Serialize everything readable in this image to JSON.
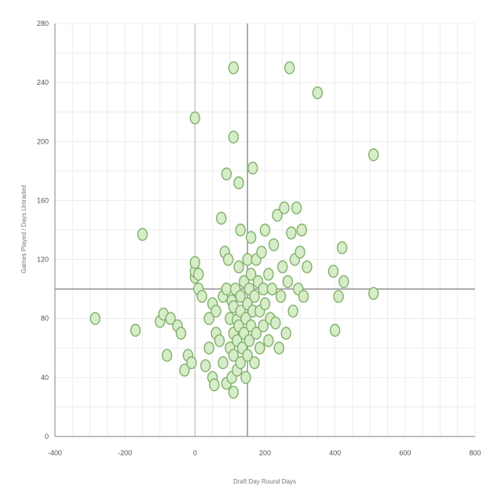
{
  "chart_data": {
    "type": "scatter",
    "title": "",
    "xlabel": "Draft Day Round Days",
    "ylabel": "Games Played / Days Untraded",
    "xlim": [
      -400,
      800
    ],
    "ylim": [
      0,
      280
    ],
    "xticks": [
      "-400",
      "-200",
      "0",
      "200",
      "400",
      "600",
      "800"
    ],
    "yticks": [
      "0",
      "40",
      "80",
      "120",
      "160",
      "200",
      "240",
      "280"
    ],
    "grid": true,
    "reference_lines": {
      "x": 150,
      "y": 100
    },
    "colors": {
      "marker_fill": "#d7ecc9",
      "marker_stroke": "#7fb069",
      "reference": "#9a9a9a"
    },
    "series": [
      {
        "points": [
          [
            -285,
            80
          ],
          [
            -170,
            72
          ],
          [
            -150,
            137
          ],
          [
            -100,
            78
          ],
          [
            -90,
            83
          ],
          [
            -80,
            55
          ],
          [
            -70,
            80
          ],
          [
            -50,
            75
          ],
          [
            -40,
            70
          ],
          [
            -30,
            45
          ],
          [
            -20,
            55
          ],
          [
            -10,
            50
          ],
          [
            0,
            108
          ],
          [
            0,
            112
          ],
          [
            0,
            118
          ],
          [
            0,
            216
          ],
          [
            10,
            100
          ],
          [
            10,
            110
          ],
          [
            20,
            95
          ],
          [
            30,
            48
          ],
          [
            40,
            60
          ],
          [
            40,
            80
          ],
          [
            50,
            40
          ],
          [
            50,
            90
          ],
          [
            55,
            35
          ],
          [
            60,
            70
          ],
          [
            60,
            85
          ],
          [
            70,
            65
          ],
          [
            75,
            148
          ],
          [
            80,
            50
          ],
          [
            80,
            95
          ],
          [
            85,
            125
          ],
          [
            90,
            36
          ],
          [
            90,
            100
          ],
          [
            90,
            178
          ],
          [
            95,
            120
          ],
          [
            100,
            60
          ],
          [
            100,
            80
          ],
          [
            105,
            40
          ],
          [
            105,
            92
          ],
          [
            110,
            30
          ],
          [
            110,
            55
          ],
          [
            110,
            70
          ],
          [
            110,
            88
          ],
          [
            110,
            203
          ],
          [
            110,
            250
          ],
          [
            115,
            100
          ],
          [
            120,
            45
          ],
          [
            120,
            65
          ],
          [
            120,
            79
          ],
          [
            125,
            75
          ],
          [
            125,
            115
          ],
          [
            125,
            172
          ],
          [
            130,
            50
          ],
          [
            130,
            85
          ],
          [
            130,
            95
          ],
          [
            130,
            140
          ],
          [
            135,
            60
          ],
          [
            140,
            70
          ],
          [
            140,
            105
          ],
          [
            145,
            40
          ],
          [
            145,
            80
          ],
          [
            150,
            55
          ],
          [
            150,
            90
          ],
          [
            150,
            120
          ],
          [
            155,
            65
          ],
          [
            155,
            100
          ],
          [
            160,
            75
          ],
          [
            160,
            110
          ],
          [
            160,
            135
          ],
          [
            165,
            85
          ],
          [
            165,
            182
          ],
          [
            170,
            50
          ],
          [
            170,
            95
          ],
          [
            175,
            70
          ],
          [
            175,
            120
          ],
          [
            180,
            105
          ],
          [
            185,
            60
          ],
          [
            185,
            85
          ],
          [
            190,
            125
          ],
          [
            195,
            75
          ],
          [
            195,
            100
          ],
          [
            200,
            90
          ],
          [
            200,
            140
          ],
          [
            210,
            65
          ],
          [
            210,
            110
          ],
          [
            215,
            80
          ],
          [
            220,
            100
          ],
          [
            225,
            130
          ],
          [
            230,
            77
          ],
          [
            235,
            150
          ],
          [
            240,
            60
          ],
          [
            245,
            95
          ],
          [
            250,
            115
          ],
          [
            255,
            155
          ],
          [
            260,
            70
          ],
          [
            265,
            105
          ],
          [
            270,
            250
          ],
          [
            275,
            138
          ],
          [
            280,
            85
          ],
          [
            285,
            120
          ],
          [
            290,
            155
          ],
          [
            295,
            100
          ],
          [
            300,
            125
          ],
          [
            305,
            140
          ],
          [
            310,
            95
          ],
          [
            320,
            115
          ],
          [
            350,
            233
          ],
          [
            395,
            112
          ],
          [
            400,
            72
          ],
          [
            410,
            95
          ],
          [
            420,
            128
          ],
          [
            425,
            105
          ],
          [
            510,
            97
          ],
          [
            510,
            191
          ]
        ]
      }
    ]
  }
}
